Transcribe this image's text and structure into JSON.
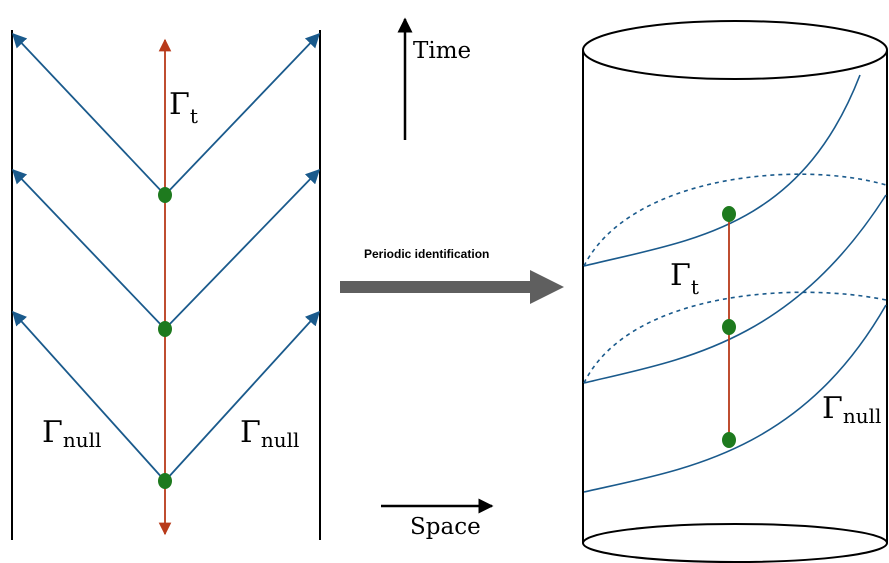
{
  "colors": {
    "null_ray": "#1a5a8c",
    "time_line": "#b83a1a",
    "point": "#1e7a1e",
    "outline": "#000000",
    "big_arrow": "#5f5f5f"
  },
  "left_panel": {
    "gamma_t": {
      "base": "Γ",
      "sub": "t"
    },
    "gamma_null_left": {
      "base": "Γ",
      "sub": "null"
    },
    "gamma_null_right": {
      "base": "Γ",
      "sub": "null"
    }
  },
  "axes": {
    "time_label": "Time",
    "space_label": "Space"
  },
  "transition": {
    "label": "Periodic identification"
  },
  "right_panel": {
    "gamma_t": {
      "base": "Γ",
      "sub": "t"
    },
    "gamma_null": {
      "base": "Γ",
      "sub": "null"
    }
  }
}
